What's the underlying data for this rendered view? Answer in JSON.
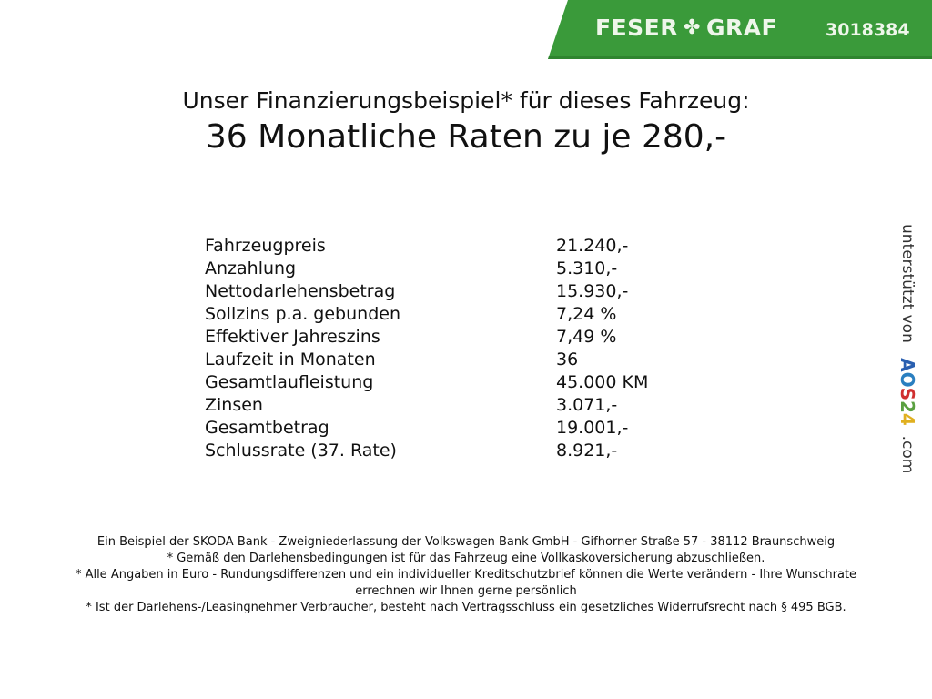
{
  "header": {
    "brand": "FESER",
    "brand2": "GRAF",
    "vehicle_id": "3018384",
    "color": "#3a9a3a"
  },
  "title": {
    "line1": "Unser Finanzierungsbeispiel* für dieses Fahrzeug:",
    "line2": "36 Monatliche Raten zu je 280,-"
  },
  "rows": [
    {
      "label": "Fahrzeugpreis",
      "value": "21.240,-"
    },
    {
      "label": "Anzahlung",
      "value": "5.310,-"
    },
    {
      "label": "Nettodarlehensbetrag",
      "value": "15.930,-"
    },
    {
      "label": "Sollzins p.a. gebunden",
      "value": "7,24 %"
    },
    {
      "label": "Effektiver Jahreszins",
      "value": "7,49 %"
    },
    {
      "label": "Laufzeit in Monaten",
      "value": "36"
    },
    {
      "label": "Gesamtlaufleistung",
      "value": "45.000 KM"
    },
    {
      "label": "Zinsen",
      "value": "3.071,-"
    },
    {
      "label": "Gesamtbetrag",
      "value": "19.001,-"
    },
    {
      "label": "Schlussrate (37. Rate)",
      "value": "8.921,-"
    }
  ],
  "footer": [
    "Ein Beispiel der SKODA Bank - Zweigniederlassung der Volkswagen Bank GmbH - Gifhorner Straße 57 - 38112 Braunschweig",
    "* Gemäß den Darlehensbedingungen ist für das Fahrzeug eine Vollkaskoversicherung abzuschließen.",
    "* Alle Angaben in Euro - Rundungsdifferenzen und ein individueller Kreditschutzbrief können die Werte verändern - Ihre Wunschrate errechnen wir Ihnen gerne persönlich",
    "* Ist der Darlehens-/Leasingnehmer Verbraucher, besteht nach Vertragsschluss ein gesetzliches Widerrufsrecht nach § 495 BGB."
  ],
  "side": {
    "prefix": "unterstützt von",
    "logo": [
      "A",
      "O",
      "S",
      "2",
      "4"
    ],
    "suffix": ".com"
  }
}
